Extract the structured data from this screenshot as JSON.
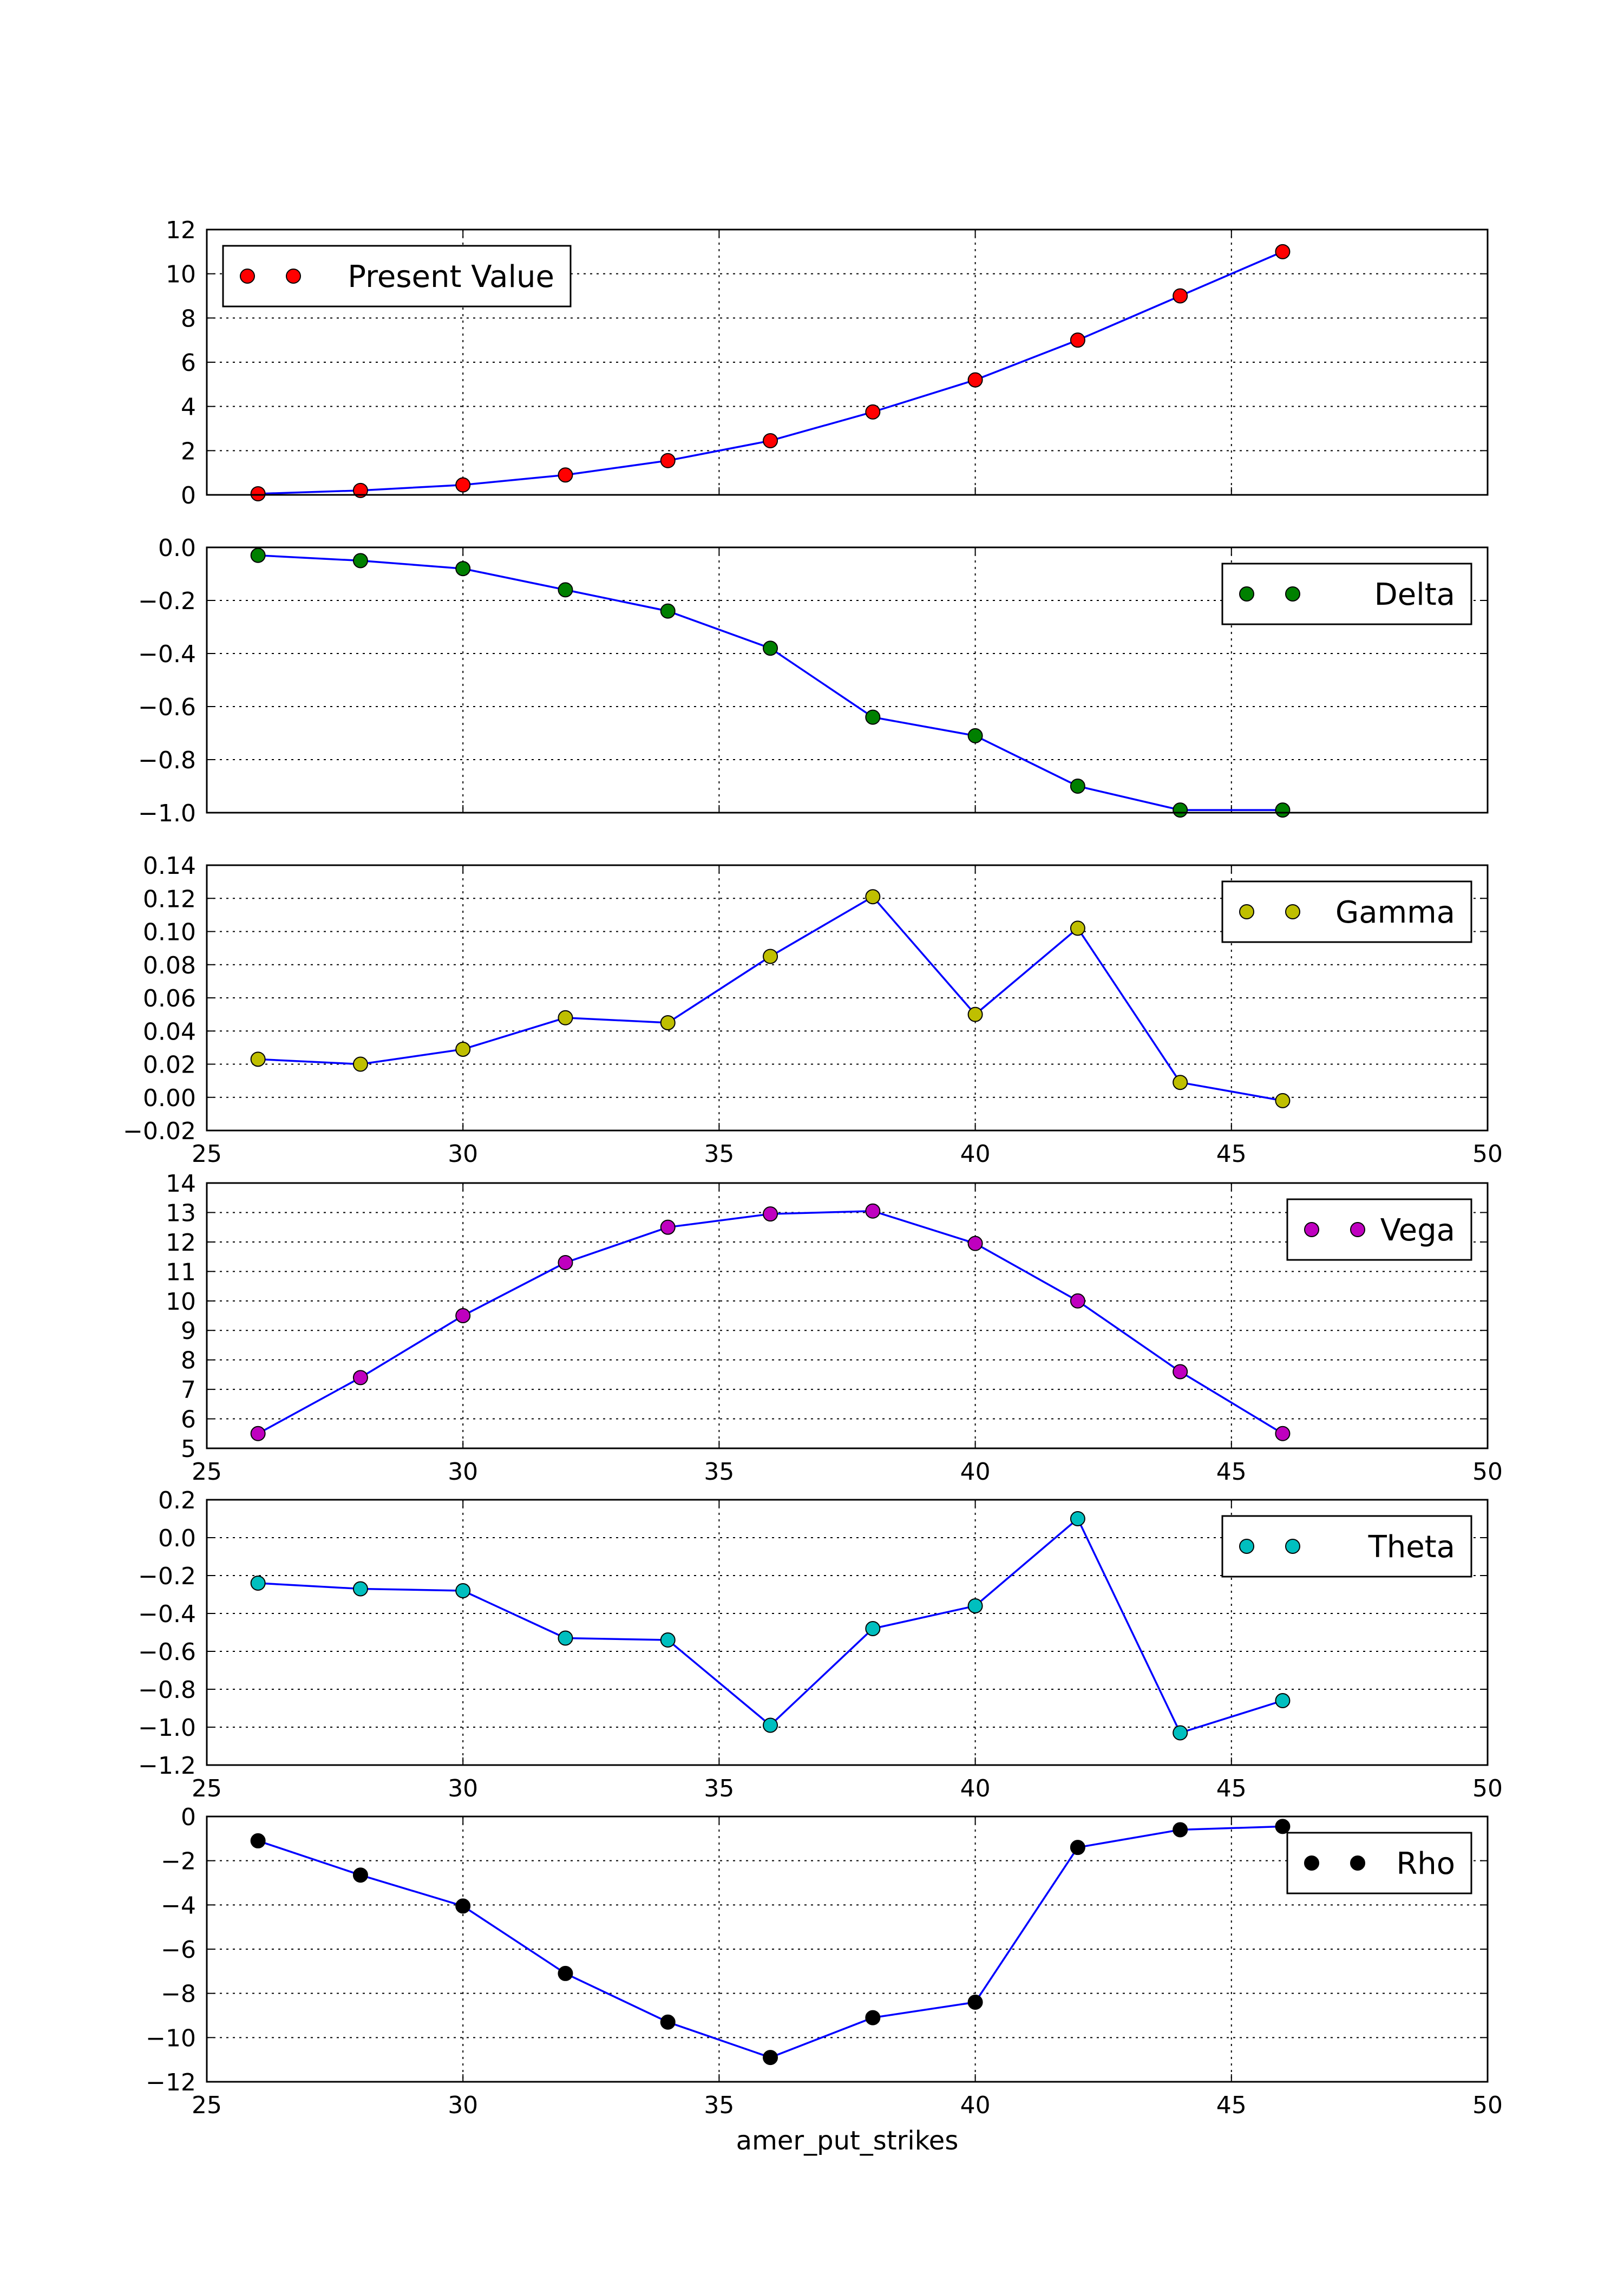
{
  "figure": {
    "x_axis_label": "amer_put_strikes"
  },
  "chart_data": [
    {
      "type": "line",
      "series": [
        {
          "name": "Present Value",
          "color": "#ff0000",
          "x": [
            26,
            28,
            30,
            32,
            34,
            36,
            38,
            40,
            42,
            44,
            46
          ],
          "y": [
            0.05,
            0.2,
            0.45,
            0.9,
            1.55,
            2.45,
            3.75,
            5.2,
            7.0,
            9.0,
            11.0
          ]
        }
      ],
      "line_color": "#0000ff",
      "xlim": [
        25,
        50
      ],
      "ylim": [
        0,
        12
      ],
      "yticks": [
        0,
        2,
        4,
        6,
        8,
        10,
        12
      ],
      "yticklabels": [
        "0",
        "2",
        "4",
        "6",
        "8",
        "10",
        "12"
      ],
      "xticks": [
        25,
        30,
        35,
        40,
        45,
        50
      ],
      "show_xticklabels": false,
      "legend_loc": "upper left",
      "grid": true
    },
    {
      "type": "line",
      "series": [
        {
          "name": "Delta",
          "color": "#008000",
          "x": [
            26,
            28,
            30,
            32,
            34,
            36,
            38,
            40,
            42,
            44,
            46
          ],
          "y": [
            -0.03,
            -0.05,
            -0.08,
            -0.16,
            -0.24,
            -0.38,
            -0.64,
            -0.71,
            -0.9,
            -0.99,
            -0.99
          ]
        }
      ],
      "line_color": "#0000ff",
      "xlim": [
        25,
        50
      ],
      "ylim": [
        -1.0,
        0.0
      ],
      "yticks": [
        -1.0,
        -0.8,
        -0.6,
        -0.4,
        -0.2,
        0.0
      ],
      "yticklabels": [
        "−1.0",
        "−0.8",
        "−0.6",
        "−0.4",
        "−0.2",
        "0.0"
      ],
      "xticks": [
        25,
        30,
        35,
        40,
        45,
        50
      ],
      "show_xticklabels": false,
      "legend_loc": "upper right",
      "grid": true
    },
    {
      "type": "line",
      "series": [
        {
          "name": "Gamma",
          "color": "#bfbf00",
          "x": [
            26,
            28,
            30,
            32,
            34,
            36,
            38,
            40,
            42,
            44,
            46
          ],
          "y": [
            0.023,
            0.02,
            0.029,
            0.048,
            0.045,
            0.085,
            0.121,
            0.05,
            0.102,
            0.009,
            -0.002
          ]
        }
      ],
      "line_color": "#0000ff",
      "xlim": [
        25,
        50
      ],
      "ylim": [
        -0.02,
        0.14
      ],
      "yticks": [
        -0.02,
        0.0,
        0.02,
        0.04,
        0.06,
        0.08,
        0.1,
        0.12,
        0.14
      ],
      "yticklabels": [
        "−0.02",
        "0.00",
        "0.02",
        "0.04",
        "0.06",
        "0.08",
        "0.10",
        "0.12",
        "0.14"
      ],
      "xticks": [
        25,
        30,
        35,
        40,
        45,
        50
      ],
      "xticklabels": [
        "25",
        "30",
        "35",
        "40",
        "45",
        "50"
      ],
      "show_xticklabels": true,
      "legend_loc": "upper right",
      "grid": true
    },
    {
      "type": "line",
      "series": [
        {
          "name": "Vega",
          "color": "#bf00bf",
          "x": [
            26,
            28,
            30,
            32,
            34,
            36,
            38,
            40,
            42,
            44,
            46
          ],
          "y": [
            5.5,
            7.4,
            9.5,
            11.3,
            12.5,
            12.95,
            13.05,
            11.95,
            10.0,
            7.6,
            5.5
          ]
        }
      ],
      "line_color": "#0000ff",
      "xlim": [
        25,
        50
      ],
      "ylim": [
        5,
        14
      ],
      "yticks": [
        5,
        6,
        7,
        8,
        9,
        10,
        11,
        12,
        13,
        14
      ],
      "yticklabels": [
        "5",
        "6",
        "7",
        "8",
        "9",
        "10",
        "11",
        "12",
        "13",
        "14"
      ],
      "xticks": [
        25,
        30,
        35,
        40,
        45,
        50
      ],
      "xticklabels": [
        "25",
        "30",
        "35",
        "40",
        "45",
        "50"
      ],
      "show_xticklabels": true,
      "legend_loc": "upper right",
      "grid": true
    },
    {
      "type": "line",
      "series": [
        {
          "name": "Theta",
          "color": "#00bfbf",
          "x": [
            26,
            28,
            30,
            32,
            34,
            36,
            38,
            40,
            42,
            44,
            46
          ],
          "y": [
            -0.24,
            -0.27,
            -0.28,
            -0.53,
            -0.54,
            -0.99,
            -0.48,
            -0.36,
            0.1,
            -1.03,
            -0.86
          ]
        }
      ],
      "line_color": "#0000ff",
      "xlim": [
        25,
        50
      ],
      "ylim": [
        -1.2,
        0.2
      ],
      "yticks": [
        -1.2,
        -1.0,
        -0.8,
        -0.6,
        -0.4,
        -0.2,
        0.0,
        0.2
      ],
      "yticklabels": [
        "−1.2",
        "−1.0",
        "−0.8",
        "−0.6",
        "−0.4",
        "−0.2",
        "0.0",
        "0.2"
      ],
      "xticks": [
        25,
        30,
        35,
        40,
        45,
        50
      ],
      "xticklabels": [
        "25",
        "30",
        "35",
        "40",
        "45",
        "50"
      ],
      "show_xticklabels": true,
      "legend_loc": "upper right",
      "grid": true
    },
    {
      "type": "line",
      "series": [
        {
          "name": "Rho",
          "color": "#000000",
          "x": [
            26,
            28,
            30,
            32,
            34,
            36,
            38,
            40,
            42,
            44,
            46
          ],
          "y": [
            -1.1,
            -2.65,
            -4.05,
            -7.1,
            -9.3,
            -10.9,
            -9.1,
            -8.4,
            -1.4,
            -0.6,
            -0.45
          ]
        }
      ],
      "line_color": "#0000ff",
      "xlim": [
        25,
        50
      ],
      "ylim": [
        -12,
        0
      ],
      "yticks": [
        -12,
        -10,
        -8,
        -6,
        -4,
        -2,
        0
      ],
      "yticklabels": [
        "−12",
        "−10",
        "−8",
        "−6",
        "−4",
        "−2",
        "0"
      ],
      "xticks": [
        25,
        30,
        35,
        40,
        45,
        50
      ],
      "xticklabels": [
        "25",
        "30",
        "35",
        "40",
        "45",
        "50"
      ],
      "show_xticklabels": true,
      "legend_loc": "upper right",
      "grid": true
    }
  ]
}
